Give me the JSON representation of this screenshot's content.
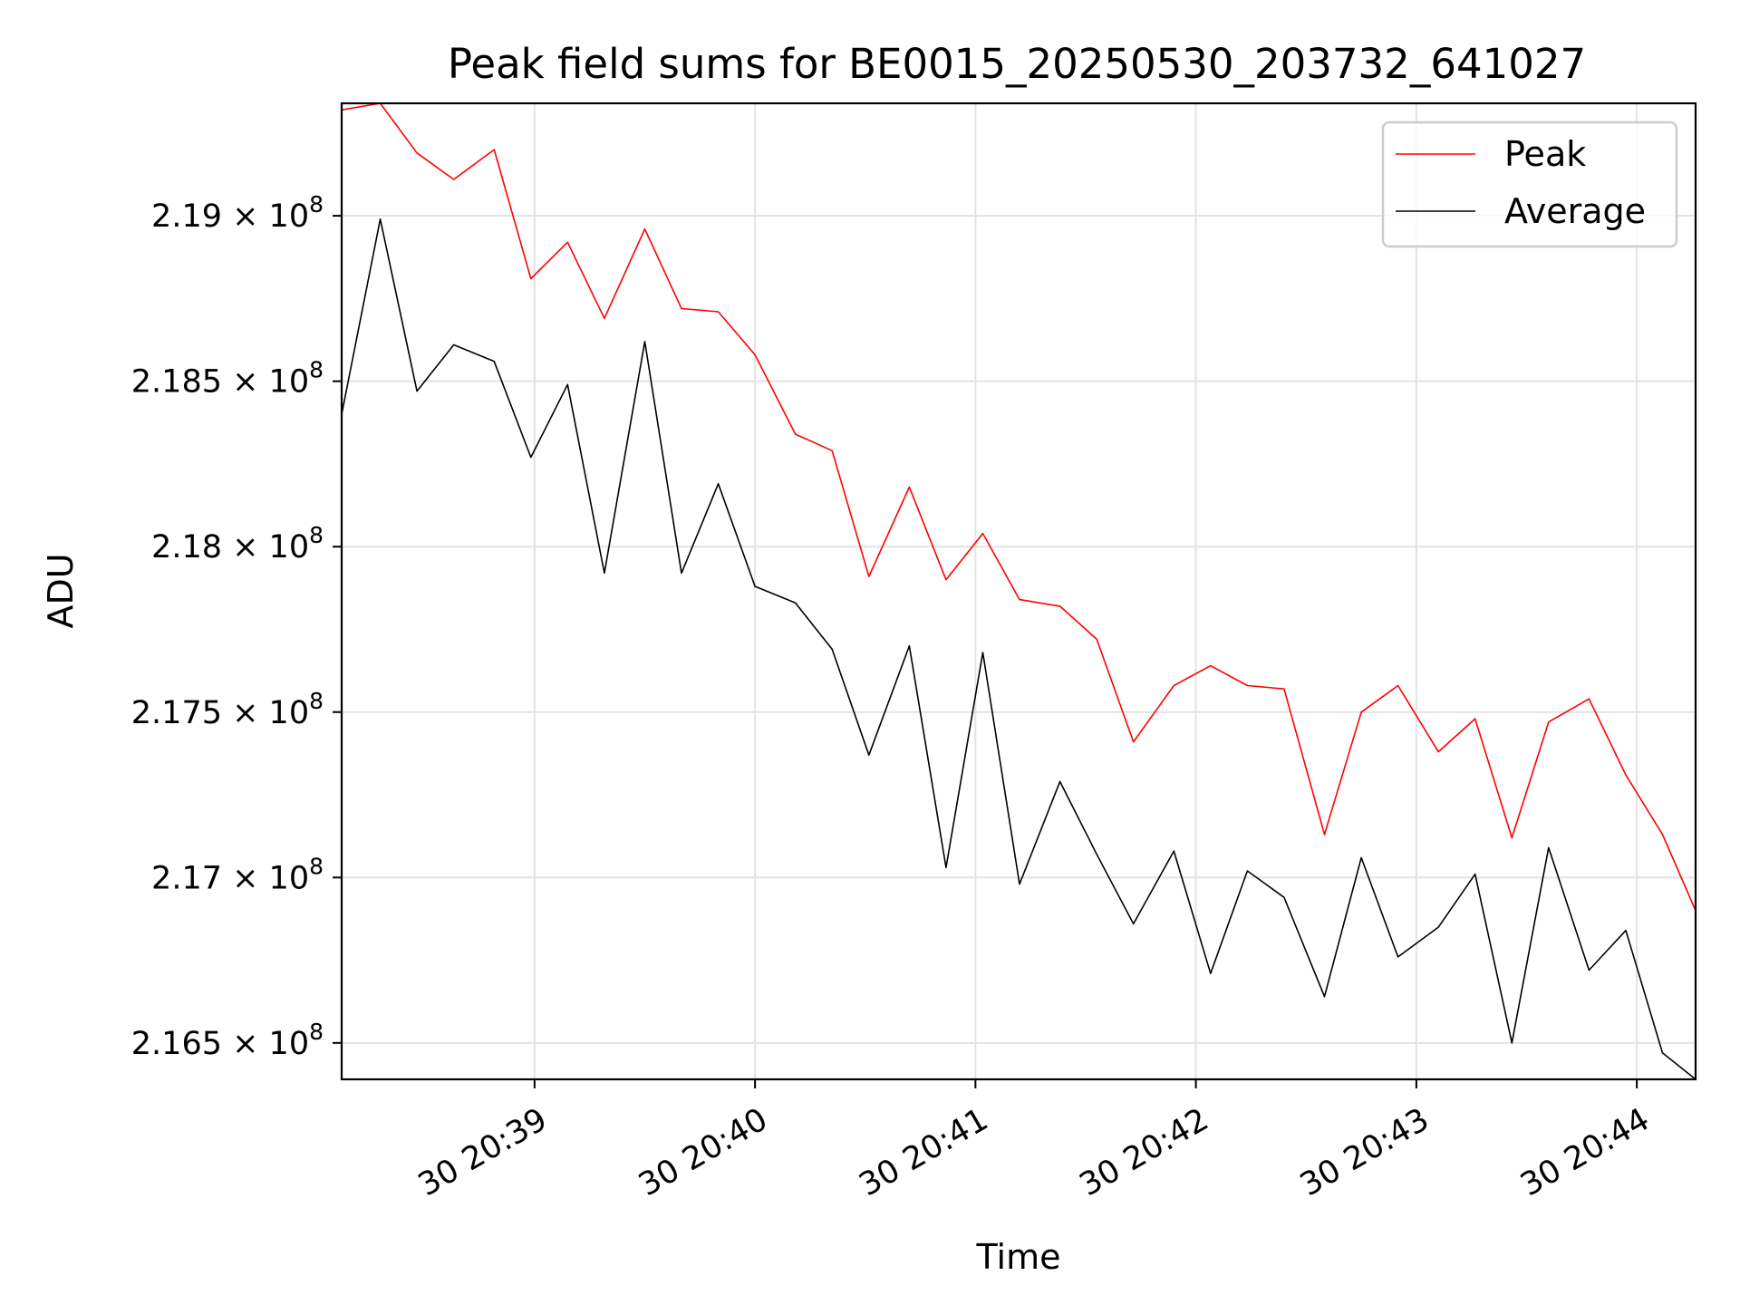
{
  "chart_data": {
    "type": "line",
    "title": "Peak field sums for BE0015_20250530_203732_641027",
    "xlabel": "Time",
    "ylabel": "ADU",
    "grid": true,
    "legend_position": "upper right",
    "y_tick_mantissas": [
      "2.165",
      "2.17",
      "2.175",
      "2.18",
      "2.185",
      "2.19"
    ],
    "y_tick_values": [
      216500000,
      217000000,
      217500000,
      218000000,
      218500000,
      219000000
    ],
    "y_tick_exponent": "8",
    "ylim": [
      216390000,
      219340000
    ],
    "x_tick_labels": [
      "30 20:39",
      "30 20:40",
      "30 20:41",
      "30 20:42",
      "30 20:43",
      "30 20:44"
    ],
    "x_tick_times": [
      "20:39:00",
      "20:40:00",
      "20:41:00",
      "20:42:00",
      "20:43:00",
      "20:44:00"
    ],
    "xlim": [
      "20:38:07.5",
      "20:44:16"
    ],
    "x": [
      "20:38:07.5",
      "20:38:18",
      "20:38:28",
      "20:38:38",
      "20:38:49",
      "20:38:59",
      "20:39:09",
      "20:39:19",
      "20:39:30",
      "20:39:40",
      "20:39:50",
      "20:40:00",
      "20:40:11",
      "20:40:21",
      "20:40:31",
      "20:40:42",
      "20:40:52",
      "20:41:02",
      "20:41:12",
      "20:41:23",
      "20:41:33",
      "20:41:43",
      "20:41:54",
      "20:42:04",
      "20:42:14",
      "20:42:24",
      "20:42:35",
      "20:42:45",
      "20:42:55",
      "20:43:06",
      "20:43:16",
      "20:43:26",
      "20:43:36",
      "20:43:47",
      "20:43:57",
      "20:44:07",
      "20:44:16"
    ],
    "series": [
      {
        "name": "Peak",
        "color": "#ff0000",
        "values": [
          219320000,
          219340000,
          219190000,
          219110000,
          219200000,
          218810000,
          218920000,
          218690000,
          218960000,
          218720000,
          218710000,
          218580000,
          218340000,
          218290000,
          217910000,
          218180000,
          217900000,
          218040000,
          217840000,
          217820000,
          217720000,
          217410000,
          217580000,
          217640000,
          217580000,
          217570000,
          217130000,
          217500000,
          217580000,
          217380000,
          217480000,
          217120000,
          217470000,
          217540000,
          217310000,
          217130000,
          216900000
        ]
      },
      {
        "name": "Average",
        "color": "#000000",
        "values": [
          218400000,
          218990000,
          218470000,
          218610000,
          218560000,
          218270000,
          218490000,
          217920000,
          218620000,
          217920000,
          218190000,
          217880000,
          217830000,
          217690000,
          217370000,
          217700000,
          217030000,
          217680000,
          216980000,
          217290000,
          217070000,
          216860000,
          217080000,
          216710000,
          217020000,
          216940000,
          216640000,
          217060000,
          216760000,
          216850000,
          217010000,
          216500000,
          217090000,
          216720000,
          216840000,
          216470000,
          216390000
        ]
      }
    ]
  }
}
